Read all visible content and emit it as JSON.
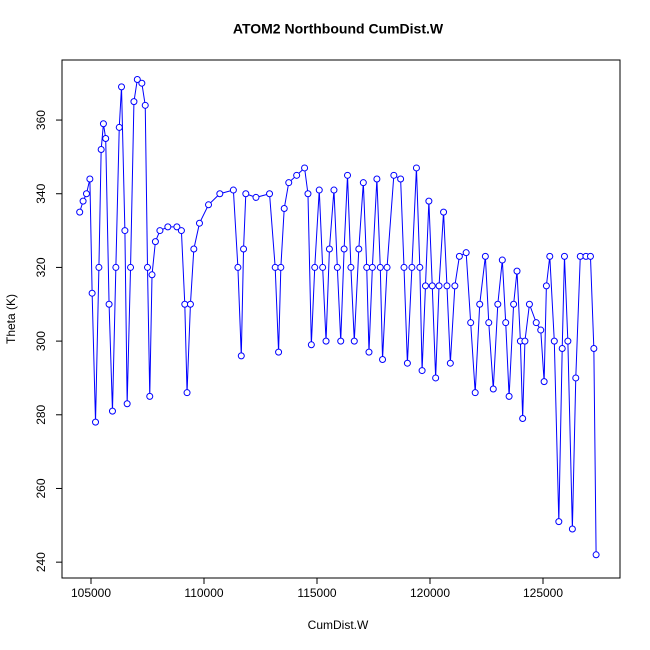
{
  "chart_data": {
    "type": "line",
    "title": "ATOM2 Northbound CumDist.W",
    "x_label": "CumDist.W",
    "y_label": "Theta (K)",
    "color": "#0000ff",
    "marker": "circle",
    "x": [
      104500,
      104650,
      104800,
      104950,
      105050,
      105200,
      105350,
      105450,
      105550,
      105650,
      105800,
      105950,
      106100,
      106250,
      106350,
      106500,
      106600,
      106750,
      106900,
      107050,
      107250,
      107400,
      107500,
      107600,
      107700,
      107850,
      108050,
      108400,
      108800,
      109000,
      109150,
      109250,
      109400,
      109550,
      109800,
      110200,
      110700,
      111300,
      111500,
      111650,
      111750,
      111850,
      112300,
      112900,
      113150,
      113300,
      113400,
      113550,
      113750,
      114100,
      114450,
      114600,
      114750,
      114900,
      115100,
      115250,
      115400,
      115550,
      115750,
      115900,
      116050,
      116200,
      116350,
      116500,
      116650,
      116850,
      117050,
      117200,
      117300,
      117450,
      117650,
      117800,
      117900,
      118100,
      118400,
      118700,
      118850,
      119000,
      119200,
      119400,
      119550,
      119650,
      119800,
      119950,
      120100,
      120250,
      120400,
      120600,
      120750,
      120900,
      121100,
      121300,
      121600,
      121800,
      122000,
      122200,
      122450,
      122600,
      122800,
      123000,
      123200,
      123350,
      123500,
      123700,
      123850,
      124000,
      124100,
      124200,
      124400,
      124700,
      124900,
      125050,
      125150,
      125300,
      125500,
      125700,
      125850,
      125950,
      126100,
      126300,
      126450,
      126650,
      126900,
      127100,
      127250,
      127350
    ],
    "values": [
      335,
      338,
      340,
      344,
      313,
      278,
      320,
      352,
      359,
      355,
      310,
      281,
      320,
      358,
      369,
      330,
      283,
      320,
      365,
      371,
      370,
      364,
      320,
      285,
      318,
      327,
      330,
      331,
      331,
      330,
      310,
      286,
      310,
      325,
      332,
      337,
      340,
      341,
      320,
      296,
      325,
      340,
      339,
      340,
      320,
      297,
      320,
      336,
      343,
      345,
      347,
      340,
      299,
      320,
      341,
      320,
      300,
      325,
      341,
      320,
      300,
      325,
      345,
      320,
      300,
      325,
      343,
      320,
      297,
      320,
      344,
      320,
      295,
      320,
      345,
      344,
      320,
      294,
      320,
      347,
      320,
      292,
      315,
      338,
      315,
      290,
      315,
      335,
      315,
      294,
      315,
      323,
      324,
      305,
      286,
      310,
      323,
      305,
      287,
      310,
      322,
      305,
      285,
      310,
      319,
      300,
      279,
      300,
      310,
      305,
      303,
      289,
      315,
      323,
      300,
      251,
      298,
      323,
      300,
      249,
      290,
      323,
      323,
      323,
      298,
      242
    ],
    "xlim": [
      103717,
      128407
    ],
    "ylim": [
      235.7,
      376.3
    ],
    "xticks": [
      105000,
      110000,
      115000,
      120000,
      125000
    ],
    "yticks": [
      240,
      260,
      280,
      300,
      320,
      340,
      360
    ]
  }
}
